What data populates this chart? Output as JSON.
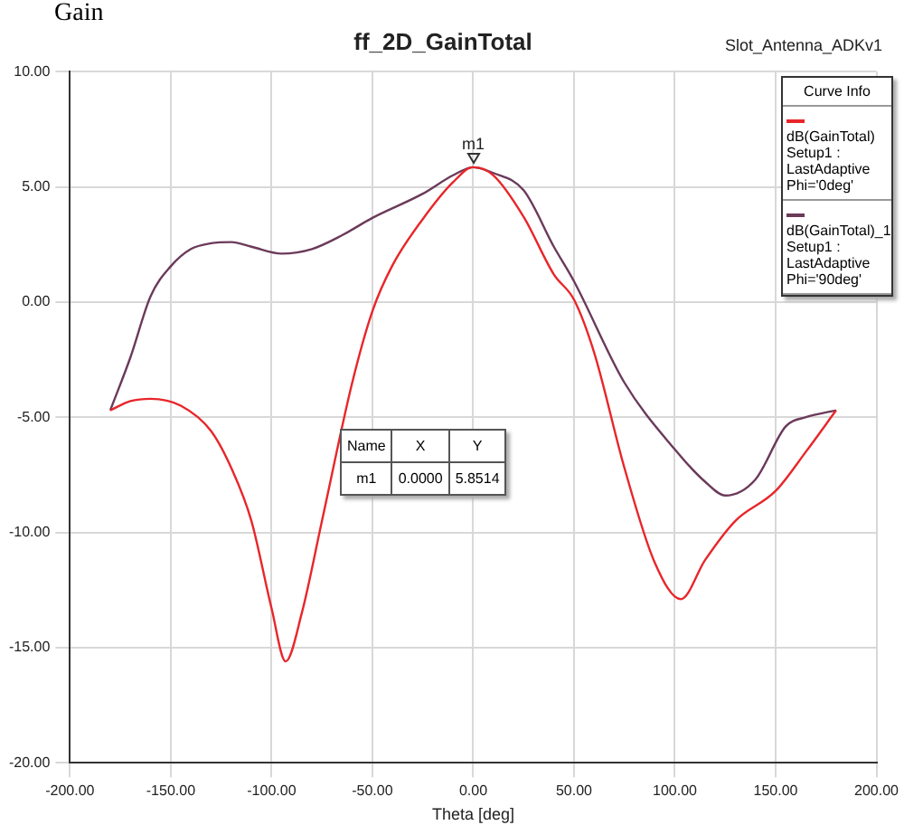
{
  "chart_data": {
    "type": "line",
    "title": "ff_2D_GainTotal",
    "subtitle": "Slot_Antenna_ADKv1",
    "xlabel": "Theta [deg]",
    "legend_title": "Curve Info",
    "xlim": [
      -200,
      200
    ],
    "xticks": [
      {
        "value": -200,
        "label": "-200.00"
      },
      {
        "value": -150,
        "label": "-150.00"
      },
      {
        "value": -100,
        "label": "-100.00"
      },
      {
        "value": -50,
        "label": "-50.00"
      },
      {
        "value": 0,
        "label": "0.00"
      },
      {
        "value": 50,
        "label": "50.00"
      },
      {
        "value": 100,
        "label": "100.00"
      },
      {
        "value": 150,
        "label": "150.00"
      },
      {
        "value": 200,
        "label": "200.00"
      }
    ],
    "ylim": [
      -20,
      10
    ],
    "yticks": [
      {
        "value": -20,
        "label": "-20.00"
      },
      {
        "value": -15,
        "label": "-15.00"
      },
      {
        "value": -10,
        "label": "-10.00"
      },
      {
        "value": -5,
        "label": "-5.00"
      },
      {
        "value": 0,
        "label": "0.00"
      },
      {
        "value": 5,
        "label": "5.00"
      },
      {
        "value": 10,
        "label": "10.00"
      }
    ],
    "grid": true,
    "legend": "top right",
    "marker": "none",
    "line_style": "solid",
    "series": [
      {
        "name": "dB(GainTotal)\nSetup1 : LastAdaptive\nPhi='0deg'",
        "color": "#e8262a",
        "x": [
          -180,
          -170,
          -160,
          -145,
          -130,
          -120,
          -110,
          -100,
          -93,
          -85,
          -75,
          -60,
          -50,
          -40,
          -25,
          -10,
          0,
          10,
          25,
          40,
          50,
          60,
          75,
          90,
          103,
          115,
          130,
          150,
          165,
          180
        ],
        "values": [
          -4.7,
          -4.3,
          -4.2,
          -4.5,
          -5.6,
          -7.2,
          -9.5,
          -13.3,
          -15.6,
          -13.5,
          -9.5,
          -3.5,
          -0.4,
          1.6,
          3.6,
          5.2,
          5.85,
          5.5,
          3.7,
          1.2,
          0.1,
          -2.2,
          -7.2,
          -11.3,
          -12.9,
          -11.2,
          -9.5,
          -8.2,
          -6.5,
          -4.7
        ]
      },
      {
        "name": "dB(GainTotal)_1\nSetup1 : LastAdaptive\nPhi='90deg'",
        "color": "#6b3a5a",
        "x": [
          -180,
          -170,
          -160,
          -150,
          -140,
          -130,
          -120,
          -110,
          -95,
          -80,
          -65,
          -50,
          -25,
          -10,
          0,
          10,
          25,
          40,
          50,
          75,
          100,
          115,
          125,
          140,
          155,
          165,
          180
        ],
        "values": [
          -4.7,
          -2.4,
          0.25,
          1.55,
          2.3,
          2.55,
          2.6,
          2.4,
          2.1,
          2.3,
          2.9,
          3.65,
          4.7,
          5.5,
          5.85,
          5.6,
          4.85,
          2.4,
          0.9,
          -3.5,
          -6.4,
          -7.8,
          -8.4,
          -7.7,
          -5.4,
          -5.0,
          -4.7
        ]
      }
    ],
    "annotations": [
      {
        "text": "m1",
        "x": 0,
        "y": 5.8514
      },
      "Gain",
      "Name",
      "X",
      "Y",
      "m1",
      "0.0000",
      "5.8514"
    ]
  }
}
